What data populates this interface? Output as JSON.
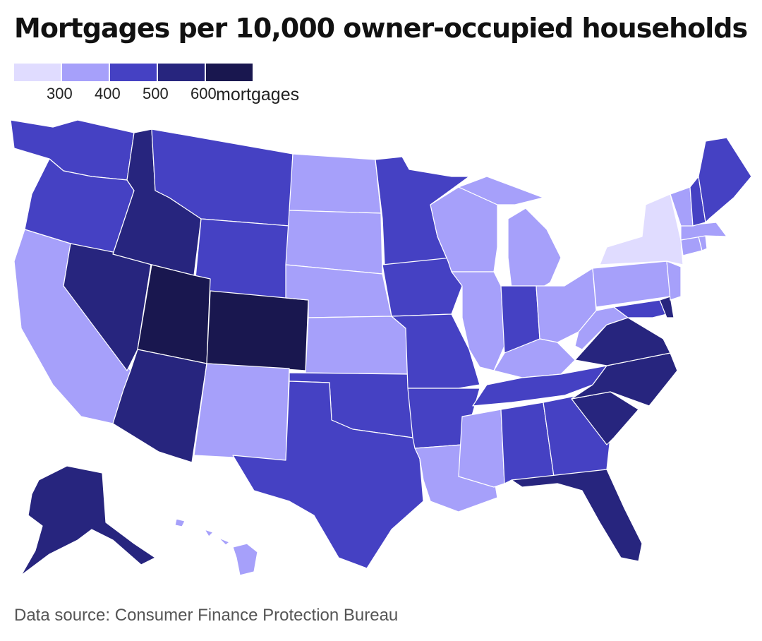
{
  "title": "Mortgages per 10,000 owner-occupied households",
  "legend": {
    "colors": [
      "#e0dcff",
      "#a6a0fa",
      "#4541c3",
      "#27257e",
      "#19174f"
    ],
    "ticks": [
      "300",
      "400",
      "500",
      "600"
    ],
    "unit": "mortgages"
  },
  "source": "Data source: Consumer Finance Protection Bureau",
  "chart_data": {
    "type": "choropleth",
    "bins": [
      "<300",
      "300-400",
      "400-500",
      "500-600",
      ">600"
    ],
    "states": [
      {
        "name": "Washington",
        "bin": 2
      },
      {
        "name": "Oregon",
        "bin": 2
      },
      {
        "name": "California",
        "bin": 1
      },
      {
        "name": "Nevada",
        "bin": 3
      },
      {
        "name": "Idaho",
        "bin": 3
      },
      {
        "name": "Montana",
        "bin": 2
      },
      {
        "name": "Wyoming",
        "bin": 2
      },
      {
        "name": "Utah",
        "bin": 4
      },
      {
        "name": "Colorado",
        "bin": 4
      },
      {
        "name": "Arizona",
        "bin": 3
      },
      {
        "name": "New Mexico",
        "bin": 1
      },
      {
        "name": "North Dakota",
        "bin": 1
      },
      {
        "name": "South Dakota",
        "bin": 1
      },
      {
        "name": "Nebraska",
        "bin": 1
      },
      {
        "name": "Kansas",
        "bin": 1
      },
      {
        "name": "Oklahoma",
        "bin": 2
      },
      {
        "name": "Texas",
        "bin": 2
      },
      {
        "name": "Minnesota",
        "bin": 2
      },
      {
        "name": "Iowa",
        "bin": 2
      },
      {
        "name": "Missouri",
        "bin": 2
      },
      {
        "name": "Arkansas",
        "bin": 2
      },
      {
        "name": "Louisiana",
        "bin": 1
      },
      {
        "name": "Wisconsin",
        "bin": 1
      },
      {
        "name": "Illinois",
        "bin": 1
      },
      {
        "name": "Michigan",
        "bin": 1
      },
      {
        "name": "Indiana",
        "bin": 2
      },
      {
        "name": "Ohio",
        "bin": 1
      },
      {
        "name": "Kentucky",
        "bin": 1
      },
      {
        "name": "Tennessee",
        "bin": 2
      },
      {
        "name": "Mississippi",
        "bin": 1
      },
      {
        "name": "Alabama",
        "bin": 2
      },
      {
        "name": "Georgia",
        "bin": 2
      },
      {
        "name": "Florida",
        "bin": 3
      },
      {
        "name": "South Carolina",
        "bin": 3
      },
      {
        "name": "North Carolina",
        "bin": 3
      },
      {
        "name": "Virginia",
        "bin": 3
      },
      {
        "name": "West Virginia",
        "bin": 1
      },
      {
        "name": "Maryland",
        "bin": 2
      },
      {
        "name": "Delaware",
        "bin": 3
      },
      {
        "name": "Pennsylvania",
        "bin": 1
      },
      {
        "name": "New Jersey",
        "bin": 1
      },
      {
        "name": "New York",
        "bin": 0
      },
      {
        "name": "Connecticut",
        "bin": 1
      },
      {
        "name": "Rhode Island",
        "bin": 1
      },
      {
        "name": "Massachusetts",
        "bin": 1
      },
      {
        "name": "Vermont",
        "bin": 1
      },
      {
        "name": "New Hampshire",
        "bin": 2
      },
      {
        "name": "Maine",
        "bin": 2
      },
      {
        "name": "Alaska",
        "bin": 3
      },
      {
        "name": "Hawaii",
        "bin": 1
      }
    ]
  }
}
